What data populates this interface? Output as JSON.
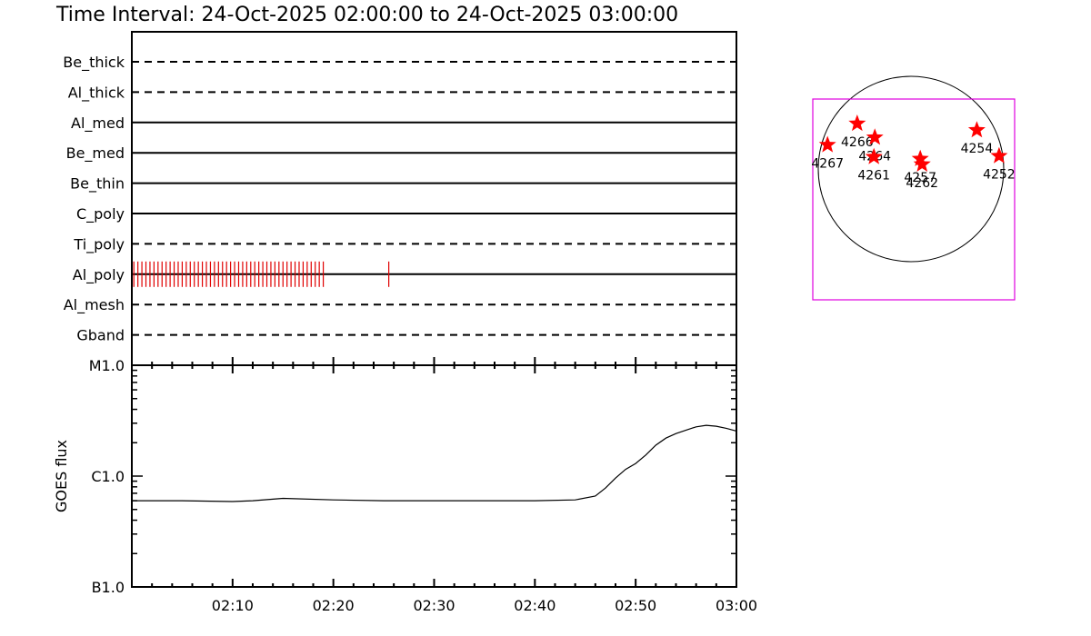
{
  "chart_data": [
    {
      "type": "timeline",
      "title": "Time Interval: 24-Oct-2025 02:00:00 to 24-Oct-2025 03:00:00",
      "time_range": [
        "02:00",
        "03:00"
      ],
      "x_tick_labels": [
        "02:10",
        "02:20",
        "02:30",
        "02:40",
        "02:50",
        "03:00"
      ],
      "filters": [
        {
          "name": "Be_thick",
          "style": "dashed"
        },
        {
          "name": "Al_thick",
          "style": "dashed"
        },
        {
          "name": "Al_med",
          "style": "solid"
        },
        {
          "name": "Be_med",
          "style": "solid"
        },
        {
          "name": "Be_thin",
          "style": "solid"
        },
        {
          "name": "C_poly",
          "style": "solid"
        },
        {
          "name": "Ti_poly",
          "style": "dashed"
        },
        {
          "name": "Al_poly",
          "style": "solid"
        },
        {
          "name": "Al_mesh",
          "style": "dashed"
        },
        {
          "name": "Gband",
          "style": "dashed"
        }
      ],
      "observations": [
        {
          "filter": "Al_poly",
          "color": "#e00000",
          "times_minutes": [
            0.2,
            0.6,
            1.0,
            1.4,
            1.8,
            2.2,
            2.6,
            3.0,
            3.4,
            3.8,
            4.2,
            4.6,
            5.0,
            5.4,
            5.8,
            6.2,
            6.6,
            7.0,
            7.4,
            7.8,
            8.2,
            8.6,
            9.0,
            9.4,
            9.8,
            10.2,
            10.6,
            11.0,
            11.4,
            11.8,
            12.2,
            12.6,
            13.0,
            13.4,
            13.8,
            14.2,
            14.6,
            15.0,
            15.4,
            15.8,
            16.2,
            16.6,
            17.0,
            17.4,
            17.8,
            18.2,
            18.6,
            19.0,
            25.5
          ]
        }
      ]
    },
    {
      "type": "line",
      "ylabel": "GOES flux",
      "yscale": "log",
      "ytick_labels": [
        "B1.0",
        "C1.0",
        "M1.0"
      ],
      "ylim": [
        1e-07,
        1e-05
      ],
      "x_tick_labels": [
        "02:10",
        "02:20",
        "02:30",
        "02:40",
        "02:50",
        "03:00"
      ],
      "series": [
        {
          "x_minutes": [
            0,
            5,
            10,
            12,
            15,
            20,
            25,
            30,
            35,
            40,
            44,
            46,
            47,
            48,
            49,
            50,
            51,
            52,
            53,
            54,
            55,
            56,
            57,
            58,
            59,
            60
          ],
          "y": [
            6e-07,
            6e-07,
            5.9e-07,
            6e-07,
            6.3e-07,
            6.1e-07,
            6e-07,
            6e-07,
            6e-07,
            6e-07,
            6.1e-07,
            6.6e-07,
            7.8e-07,
            9.6e-07,
            1.15e-06,
            1.3e-06,
            1.55e-06,
            1.9e-06,
            2.2e-06,
            2.42e-06,
            2.6e-06,
            2.78e-06,
            2.87e-06,
            2.82e-06,
            2.7e-06,
            2.55e-06
          ]
        }
      ]
    },
    {
      "type": "scatter",
      "description_free": true,
      "marker": "star",
      "marker_color": "#ff0000",
      "box_color": "#e000e0",
      "regions": [
        {
          "id": "4266",
          "x": -0.58,
          "y": 0.49
        },
        {
          "id": "4264",
          "x": -0.39,
          "y": 0.34
        },
        {
          "id": "4261",
          "x": -0.4,
          "y": 0.13
        },
        {
          "id": "4267",
          "x": -0.9,
          "y": 0.26
        },
        {
          "id": "4257",
          "x": 0.1,
          "y": 0.11
        },
        {
          "id": "4262",
          "x": 0.12,
          "y": 0.05
        },
        {
          "id": "4254",
          "x": 0.71,
          "y": 0.42
        },
        {
          "id": "4252",
          "x": 0.95,
          "y": 0.14
        }
      ]
    }
  ]
}
